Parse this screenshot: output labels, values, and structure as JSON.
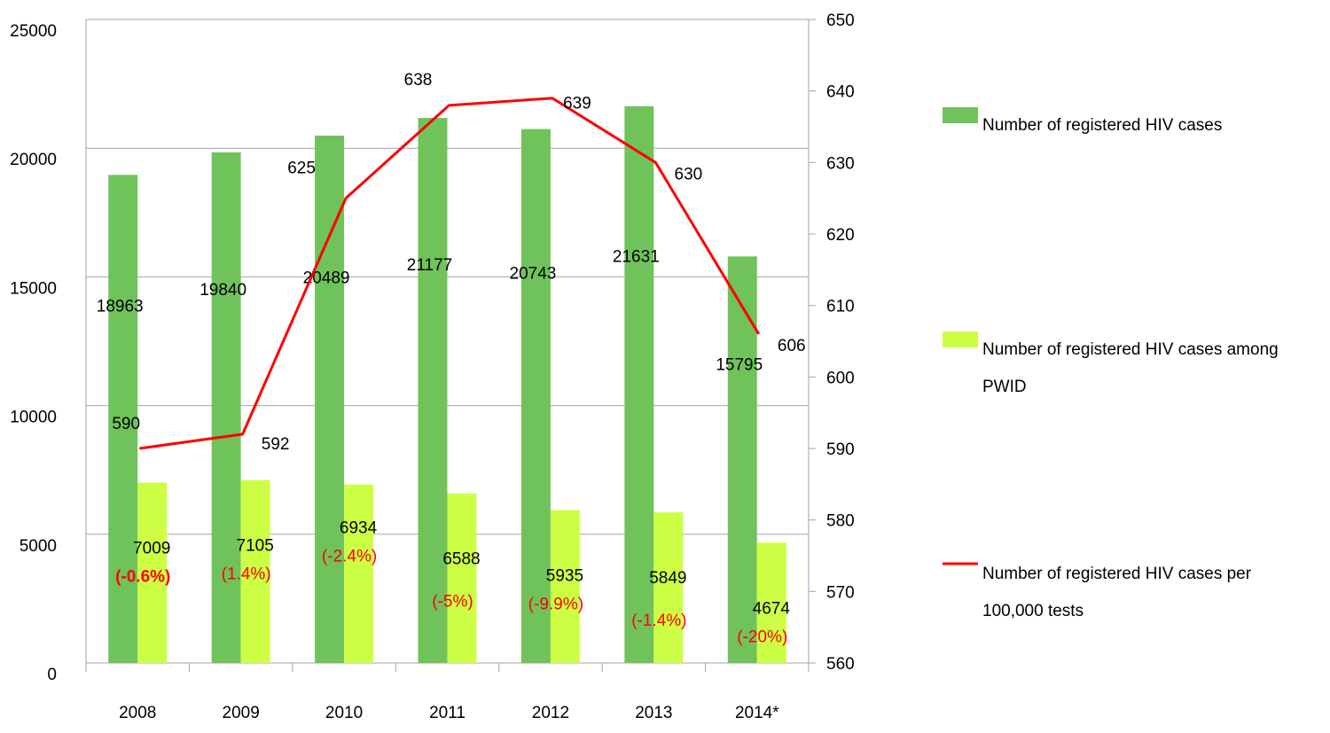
{
  "chart_data": {
    "type": "bar",
    "categories": [
      "2008",
      "2009",
      "2010",
      "2011",
      "2012",
      "2013",
      "2014*"
    ],
    "series": [
      {
        "name": "Number of registered HIV cases",
        "kind": "bar",
        "axis": "left",
        "color": "#70c35a",
        "values": [
          18963,
          19840,
          20489,
          21177,
          20743,
          21631,
          15795
        ],
        "labels": [
          "18963",
          "19840",
          "20489",
          "21177",
          "20743",
          "21631",
          "15795"
        ]
      },
      {
        "name": "Number of registered HIV cases among PWID",
        "kind": "bar",
        "axis": "left",
        "color": "#ccff44",
        "values": [
          7009,
          7105,
          6934,
          6588,
          5935,
          5849,
          4674
        ],
        "labels": [
          "7009",
          "7105",
          "6934",
          "6588",
          "5935",
          "5849",
          "4674"
        ],
        "annotations": [
          "(-0.6%)",
          "(1.4%)",
          "(-2.4%)",
          "(-5%)",
          "(-9.9%)",
          "(-1.4%)",
          "(-20%)"
        ],
        "annotation_color": "#ff0000"
      },
      {
        "name": "Number of registered HIV cases per 100,000 tests",
        "kind": "line",
        "axis": "right",
        "color": "#ff0000",
        "values": [
          590,
          592,
          625,
          638,
          639,
          630,
          606
        ],
        "labels": [
          "590",
          "592",
          "625",
          "638",
          "639",
          "630",
          "606"
        ]
      }
    ],
    "y_left": {
      "range": [
        0,
        25000
      ],
      "ticks": [
        "0",
        "5000",
        "10000",
        "15000",
        "20000",
        "25000"
      ],
      "tick_values": [
        0,
        5000,
        10000,
        15000,
        20000,
        25000
      ]
    },
    "y_right": {
      "range": [
        560,
        650
      ],
      "ticks": [
        "560",
        "570",
        "580",
        "590",
        "600",
        "610",
        "620",
        "630",
        "640",
        "650"
      ],
      "tick_values": [
        560,
        570,
        580,
        590,
        600,
        610,
        620,
        630,
        640,
        650
      ]
    },
    "grid": true,
    "legend_position": "right"
  },
  "legend": [
    {
      "lines": [
        "Number of registered HIV cases"
      ],
      "swatch": "bar",
      "color": "#70c35a"
    },
    {
      "lines": [
        "Number of registered HIV cases among",
        "PWID"
      ],
      "swatch": "bar",
      "color": "#ccff44"
    },
    {
      "lines": [
        "Number of registered HIV cases per",
        "100,000 tests"
      ],
      "swatch": "line",
      "color": "#ff0000"
    }
  ]
}
